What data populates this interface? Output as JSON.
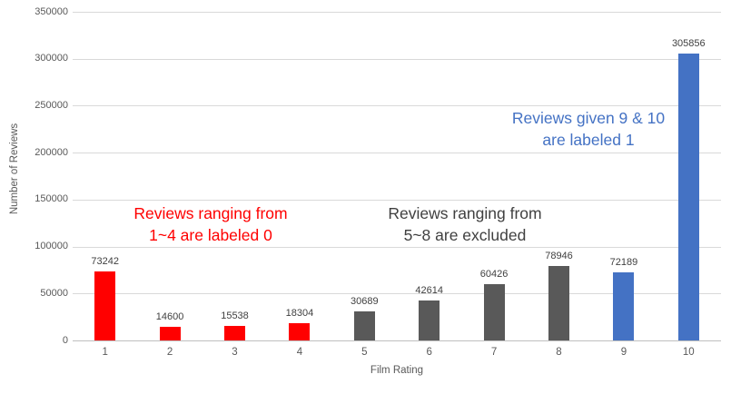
{
  "chart_data": {
    "type": "bar",
    "title": "",
    "xlabel": "Film Rating",
    "ylabel": "Number of Reviews",
    "categories": [
      "1",
      "2",
      "3",
      "4",
      "5",
      "6",
      "7",
      "8",
      "9",
      "10"
    ],
    "values": [
      73242,
      14600,
      15538,
      18304,
      30689,
      42614,
      60426,
      78946,
      72189,
      305856
    ],
    "bar_colors": [
      "#FF0000",
      "#FF0000",
      "#FF0000",
      "#FF0000",
      "#595959",
      "#595959",
      "#595959",
      "#595959",
      "#4472C4",
      "#4472C4"
    ],
    "ylim": [
      0,
      350000
    ],
    "ytick_interval": 50000,
    "yticks": [
      "0",
      "50000",
      "100000",
      "150000",
      "200000",
      "250000",
      "300000",
      "350000"
    ],
    "grid": true,
    "legend_position": "none",
    "value_labels": true
  },
  "annotations": [
    {
      "id": "group-0",
      "lines": [
        "Reviews ranging from",
        "1~4 are labeled 0"
      ],
      "color": "#FF0000"
    },
    {
      "id": "group-excluded",
      "lines": [
        "Reviews ranging from",
        "5~8 are excluded"
      ],
      "color": "#404040"
    },
    {
      "id": "group-1",
      "lines": [
        "Reviews given 9 & 10",
        "are labeled 1"
      ],
      "color": "#4472C4"
    }
  ],
  "colors": {
    "background": "#FFFFFF",
    "bar_red": "#FF0000",
    "bar_gray": "#595959",
    "bar_blue": "#4472C4",
    "gridline": "#D9D9D9",
    "axis_line": "#BFBFBF",
    "tick_label": "#595959",
    "data_label": "#404040"
  }
}
